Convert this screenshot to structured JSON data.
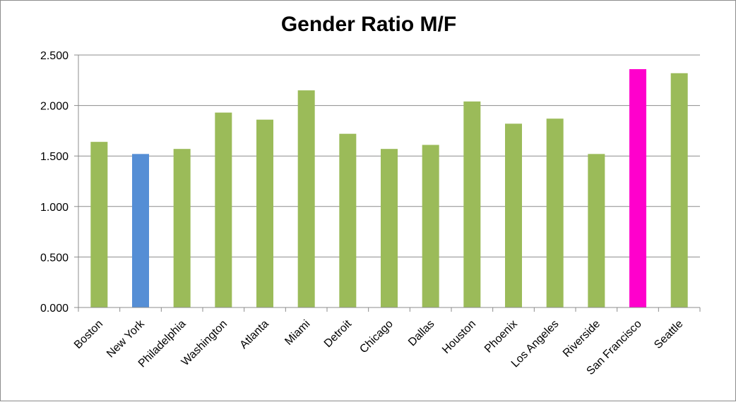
{
  "chart_data": {
    "type": "bar",
    "title": "Gender Ratio M/F",
    "xlabel": "",
    "ylabel": "",
    "categories": [
      "Boston",
      "New York",
      "Philadelphia",
      "Washington",
      "Atlanta",
      "Miami",
      "Detroit",
      "Chicago",
      "Dallas",
      "Houston",
      "Phoenix",
      "Los Angeles",
      "Riverside",
      "San Francisco",
      "Seattle"
    ],
    "values": [
      1.64,
      1.52,
      1.57,
      1.93,
      1.86,
      2.15,
      1.72,
      1.57,
      1.61,
      2.04,
      1.82,
      1.87,
      1.52,
      2.36,
      2.32
    ],
    "colors": [
      "#9bbb59",
      "#558ed5",
      "#9bbb59",
      "#9bbb59",
      "#9bbb59",
      "#9bbb59",
      "#9bbb59",
      "#9bbb59",
      "#9bbb59",
      "#9bbb59",
      "#9bbb59",
      "#9bbb59",
      "#9bbb59",
      "#ff00cc",
      "#9bbb59"
    ],
    "ylim": [
      0,
      2.5
    ],
    "yticks": [
      "0.000",
      "0.500",
      "1.000",
      "1.500",
      "2.000",
      "2.500"
    ],
    "grid": true,
    "legend": "none"
  }
}
